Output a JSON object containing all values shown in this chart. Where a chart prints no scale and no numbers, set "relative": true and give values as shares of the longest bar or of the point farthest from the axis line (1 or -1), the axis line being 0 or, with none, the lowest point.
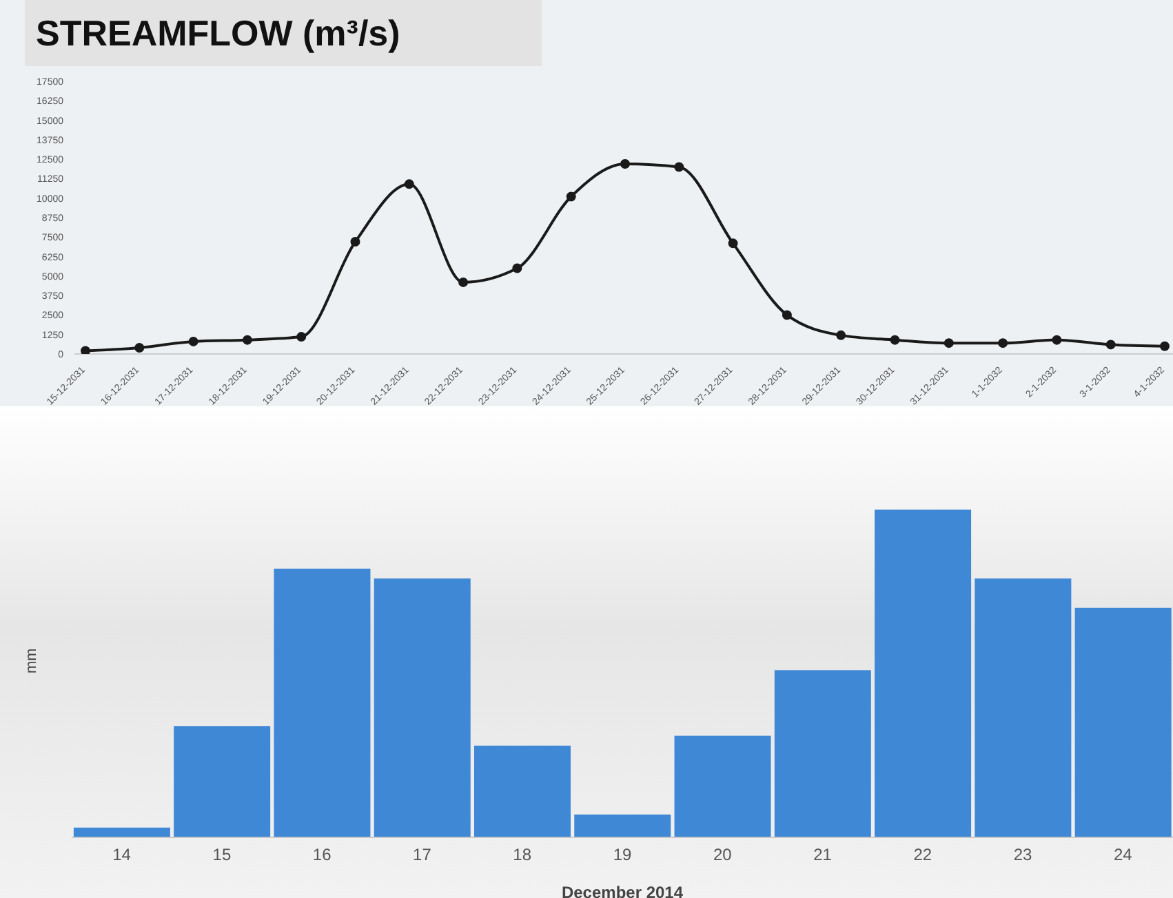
{
  "chart_data": [
    {
      "type": "line",
      "title": "STREAMFLOW (m³/s)",
      "categories": [
        "15-12-2031",
        "16-12-2031",
        "17-12-2031",
        "18-12-2031",
        "19-12-2031",
        "20-12-2031",
        "21-12-2031",
        "22-12-2031",
        "23-12-2031",
        "24-12-2031",
        "25-12-2031",
        "26-12-2031",
        "27-12-2031",
        "28-12-2031",
        "29-12-2031",
        "30-12-2031",
        "31-12-2031",
        "1-1-2032",
        "2-1-2032",
        "3-1-2032",
        "4-1-2032"
      ],
      "series": [
        {
          "color": "#1a1a1a",
          "values": [
            200,
            400,
            800,
            900,
            1100,
            7200,
            10900,
            4600,
            5500,
            10100,
            12200,
            12000,
            7100,
            2500,
            1200,
            900,
            700,
            700,
            900,
            600,
            500
          ]
        }
      ],
      "ylim": [
        0,
        17500
      ],
      "yticks": [
        0,
        1250,
        2500,
        3750,
        5000,
        6250,
        7500,
        8750,
        10000,
        11250,
        12500,
        13750,
        15000,
        16250,
        17500
      ],
      "marker": "circle",
      "line_style": "solid"
    },
    {
      "type": "bar",
      "xlabel": "December 2014",
      "ylabel": "mm",
      "relative": true,
      "categories": [
        "14",
        "15",
        "16",
        "17",
        "18",
        "19",
        "20",
        "21",
        "22",
        "23",
        "24"
      ],
      "values": [
        0.03,
        0.34,
        0.82,
        0.79,
        0.28,
        0.07,
        0.31,
        0.51,
        1,
        0.79,
        0.7
      ],
      "color": "#3f88d6"
    }
  ]
}
